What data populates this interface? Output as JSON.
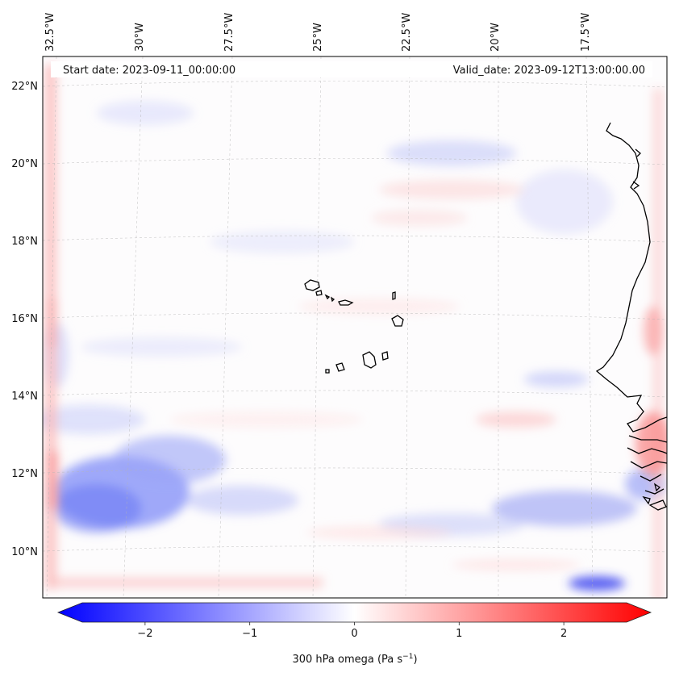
{
  "map": {
    "header": {
      "start_date": "Start date: 2023-09-11_00:00:00",
      "valid_date": "Valid_date: 2023-09-12T13:00:00.00"
    },
    "lon_labels": [
      "32.5°W",
      "30°W",
      "27.5°W",
      "25°W",
      "22.5°W",
      "20°W",
      "17.5°W"
    ],
    "lat_labels": [
      "22°N",
      "20°N",
      "18°N",
      "16°N",
      "14°N",
      "12°N",
      "10°N"
    ],
    "gridlines": true,
    "field": "300 hPa omega",
    "colors": {
      "negative": "#0000ff",
      "zero": "#ffffff",
      "positive": "#ff0000",
      "coast": "#000000"
    }
  },
  "colorbar": {
    "label_main": "300 hPa omega (Pa s",
    "label_exp": "−1",
    "label_close": ")",
    "ticks": [
      "−2",
      "−1",
      "0",
      "1",
      "2"
    ],
    "tick_values": [
      -2,
      -1,
      0,
      1,
      2
    ],
    "range": [
      -2.6,
      2.6
    ],
    "extend": "both"
  }
}
